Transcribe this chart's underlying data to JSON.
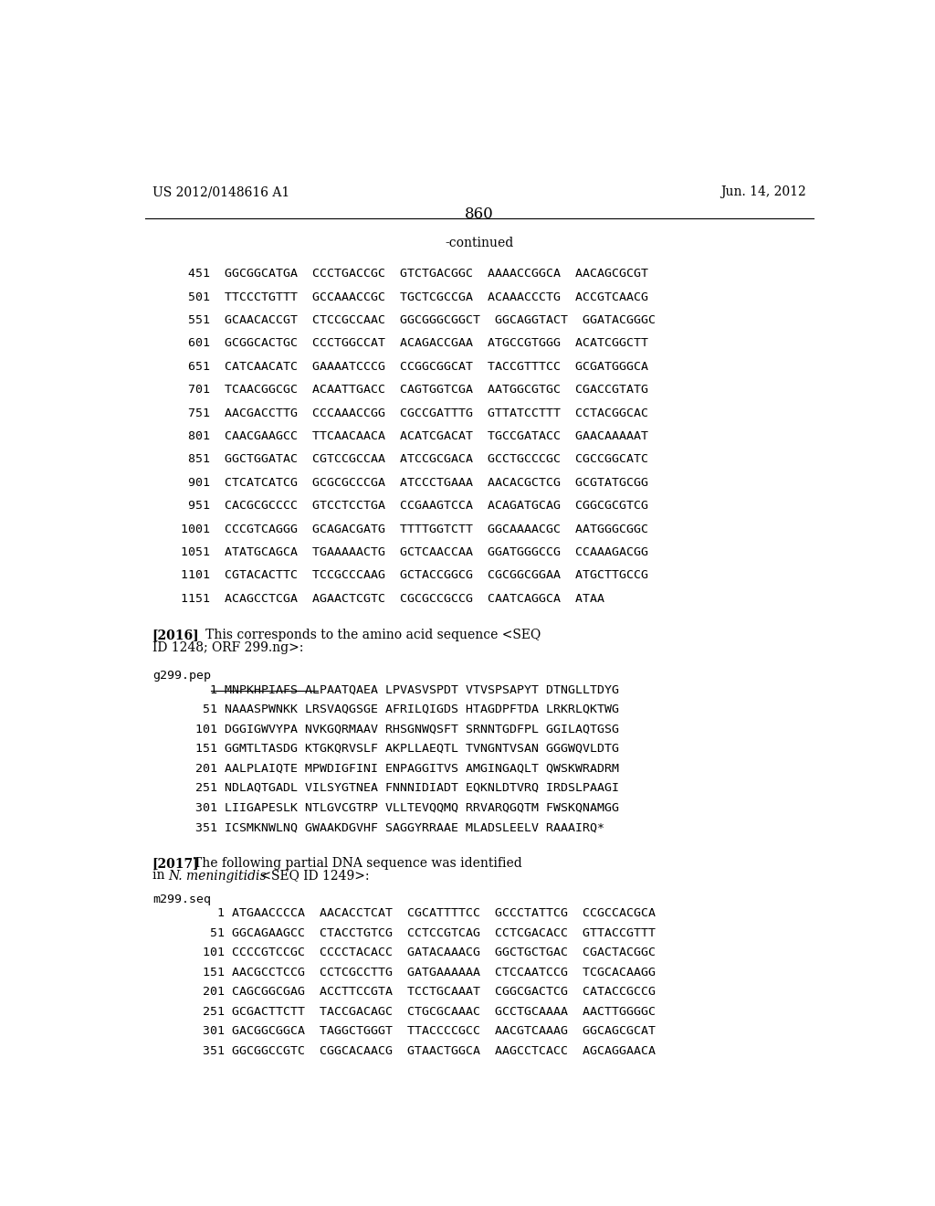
{
  "background_color": "#ffffff",
  "header_left": "US 2012/0148616 A1",
  "header_right": "Jun. 14, 2012",
  "page_number": "860",
  "continued_label": "-continued",
  "dna_lines_top": [
    " 451  GGCGGCATGA  CCCTGACCGC  GTCTGACGGC  AAAACCGGCA  AACAGCGCGT",
    " 501  TTCCCTGTTT  GCCAAACCGC  TGCTCGCCGA  ACAAACCCTG  ACCGTCAACG",
    " 551  GCAACACCGT  CTCCGCCAAC  GGCGGGCGGCT  GGCAGGTACT  GGATACGGGC",
    " 601  GCGGCACTGC  CCCTGGCCAT  ACAGACCGAA  ATGCCGTGGG  ACATCGGCTT",
    " 651  CATCAACATC  GAAAATCCCG  CCGGCGGCAT  TACCGTTTCC  GCGATGGGCA",
    " 701  TCAACGGCGC  ACAATTGACC  CAGTGGTCGA  AATGGCGTGC  CGACCGTATG",
    " 751  AACGACCTTG  CCCAAACCGG  CGCCGATTTG  GTTATCCTTT  CCTACGGCAC",
    " 801  CAACGAAGCC  TTCAACAACA  ACATCGACAT  TGCCGATACC  GAACAAAAAT",
    " 851  GGCTGGATAC  CGTCCGCCAA  ATCCGCGACA  GCCTGCCCGC  CGCCGGCATC",
    " 901  CTCATCATCG  GCGCGCCCGA  ATCCCTGAAA  AACACGCTCG  GCGTATGCGG",
    " 951  CACGCGCCCC  GTCCTCCTGA  CCGAAGTCCA  ACAGATGCAG  CGGCGCGTCG",
    "1001  CCCGTCAGGG  GCAGACGATG  TTTTGGTCTT  GGCAAAACGC  AATGGGCGGC",
    "1051  ATATGCAGCA  TGAAAAACTG  GCTCAACCAA  GGATGGGCCG  CCAAAGACGG",
    "1101  CGTACACTTC  TCCGCCCAAG  GCTACCGGCG  CGCGGCGGAA  ATGCTTGCCG",
    "1151  ACAGCCTCGA  AGAACTCGTC  CGCGCCGCCG  CAATCAGGCA  ATAA"
  ],
  "paragraph_2016_bold": "[2016]",
  "paragraph_2016_text": "   This corresponds to the amino acid sequence <SEQ\nID 1248; ORF 299.ng>:",
  "pep_label": "g299.pep",
  "pep_lines": [
    "    1 MNPKHPIAFS ALPAATQAEA LPVASVSPDT VTVSPSAPYT DTNGLLTDYG",
    "   51 NAAASPWNKK LRSVAQGSGE AFRILQIGDS HTAGDPFTDA LRKRLQKTWG",
    "  101 DGGIGWVYPA NVKGQRMAAV RHSGNWQSFT SRNNTGDFPL GGILAQTGSG",
    "  151 GGMTLTASDG KTGKQRVSLF AKPLLAEQTL TVNGNTVSAN GGGWQVLDTG",
    "  201 AALPLAIQTE MPWDIGFINI ENPAGGITVS AMGINGAQLT QWSKWRADRM",
    "  251 NDLAQTGADL VILSYGTNEA FNNNIDIADT EQKNLDTVRQ IRDSLPAAGI",
    "  301 LIIGAPESLK NTLGVCGTRP VLLTEVQQMQ RRVARQGQTM FWSKQNAMGG",
    "  351 ICSMKNWLNQ GWAAKDGVHF SAGGYRRAAE MLADSLEELV RAAAIRQ*"
  ],
  "pep_underline_text": "MNPKHPIAFS ALPAATQAEA",
  "paragraph_2017_bold": "[2017]",
  "paragraph_2017_text": "   The following partial DNA sequence was identified\nin N. meningitidis <SEQ ID 1249>:",
  "seq_label": "m299.seq",
  "seq_lines": [
    "     1 ATGAACCCCA  AACACCTCAT  CGCATTTTCC  GCCCTATTCG  CCGCCACGCA",
    "    51 GGCAGAAGCC  CTACCTGTCG  CCTCCGTCAG  CCTCGACACC  GTTACCGTTT",
    "   101 CCCCGTCCGC  CCCCTACACC  GATACAAACG  GGCTGCTGAC  CGACTACGGC",
    "   151 AACGCCTCCG  CCTCGCCTTG  GATGAAAAAA  CTCCAATCCG  TCGCACAAGG",
    "   201 CAGCGGCGAG  ACCTTCCGTA  TCCTGCAAAT  CGGCGACTCG  CATACCGCCG",
    "   251 GCGACTTCTT  TACCGACAGC  CTGCGCAAAC  GCCTGCAAAA  AACTTGGGGC",
    "   301 GACGGCGGCA  TAGGCTGGGT  TTACCCCGCC  AACGTCAAAG  GGCAGCGCAT",
    "   351 GGCGGCCGTC  CGGCACAACG  GTAACTGGCA  AAGCCTCACC  AGCAGGAACA"
  ]
}
